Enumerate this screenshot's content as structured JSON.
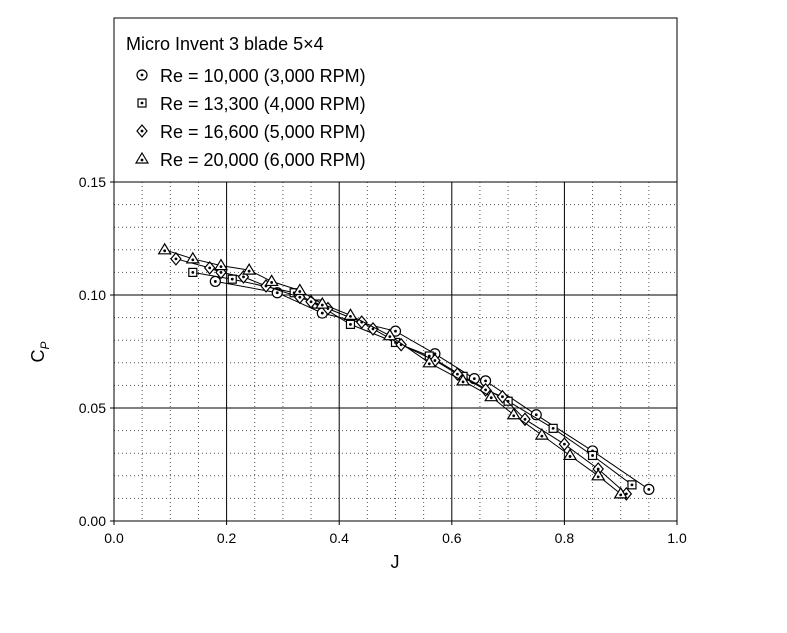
{
  "chart_data": {
    "type": "scatter",
    "title": "",
    "xlabel": "J",
    "ylabel": "C",
    "ylabel_sub": "P",
    "xlim": [
      0.0,
      1.0
    ],
    "ylim": [
      0.0,
      0.15
    ],
    "x_ticks": [
      "0.0",
      "0.2",
      "0.4",
      "0.6",
      "0.8",
      "1.0"
    ],
    "y_ticks": [
      "0.00",
      "0.05",
      "0.10",
      "0.15"
    ],
    "grid": true,
    "legend": {
      "placement": "top",
      "title": "Micro Invent 3 blade 5×4"
    },
    "series": [
      {
        "name": "Re = 10,000 (3,000 RPM)",
        "marker": "circle-dot",
        "points": [
          [
            0.18,
            0.106
          ],
          [
            0.29,
            0.101
          ],
          [
            0.37,
            0.092
          ],
          [
            0.5,
            0.084
          ],
          [
            0.57,
            0.074
          ],
          [
            0.64,
            0.063
          ],
          [
            0.66,
            0.062
          ],
          [
            0.75,
            0.047
          ],
          [
            0.85,
            0.031
          ],
          [
            0.95,
            0.014
          ]
        ]
      },
      {
        "name": "Re = 13,300 (4,000 RPM)",
        "marker": "square-dot",
        "points": [
          [
            0.14,
            0.11
          ],
          [
            0.21,
            0.107
          ],
          [
            0.32,
            0.101
          ],
          [
            0.36,
            0.096
          ],
          [
            0.42,
            0.087
          ],
          [
            0.5,
            0.079
          ],
          [
            0.56,
            0.073
          ],
          [
            0.62,
            0.064
          ],
          [
            0.7,
            0.053
          ],
          [
            0.78,
            0.041
          ],
          [
            0.85,
            0.029
          ],
          [
            0.92,
            0.016
          ]
        ]
      },
      {
        "name": "Re = 16,600 (5,000 RPM)",
        "marker": "diamond-dot",
        "points": [
          [
            0.11,
            0.116
          ],
          [
            0.17,
            0.112
          ],
          [
            0.19,
            0.11
          ],
          [
            0.23,
            0.108
          ],
          [
            0.27,
            0.104
          ],
          [
            0.33,
            0.099
          ],
          [
            0.35,
            0.097
          ],
          [
            0.38,
            0.094
          ],
          [
            0.44,
            0.088
          ],
          [
            0.46,
            0.085
          ],
          [
            0.51,
            0.078
          ],
          [
            0.57,
            0.071
          ],
          [
            0.61,
            0.065
          ],
          [
            0.66,
            0.058
          ],
          [
            0.69,
            0.055
          ],
          [
            0.73,
            0.045
          ],
          [
            0.8,
            0.034
          ],
          [
            0.86,
            0.023
          ],
          [
            0.91,
            0.012
          ]
        ]
      },
      {
        "name": "Re = 20,000 (6,000 RPM)",
        "marker": "triangle-dot",
        "points": [
          [
            0.09,
            0.12
          ],
          [
            0.14,
            0.116
          ],
          [
            0.19,
            0.113
          ],
          [
            0.24,
            0.111
          ],
          [
            0.28,
            0.106
          ],
          [
            0.33,
            0.102
          ],
          [
            0.37,
            0.096
          ],
          [
            0.42,
            0.091
          ],
          [
            0.49,
            0.082
          ],
          [
            0.56,
            0.07
          ],
          [
            0.62,
            0.062
          ],
          [
            0.67,
            0.055
          ],
          [
            0.71,
            0.047
          ],
          [
            0.76,
            0.038
          ],
          [
            0.81,
            0.029
          ],
          [
            0.86,
            0.02
          ],
          [
            0.9,
            0.012
          ]
        ]
      }
    ]
  }
}
